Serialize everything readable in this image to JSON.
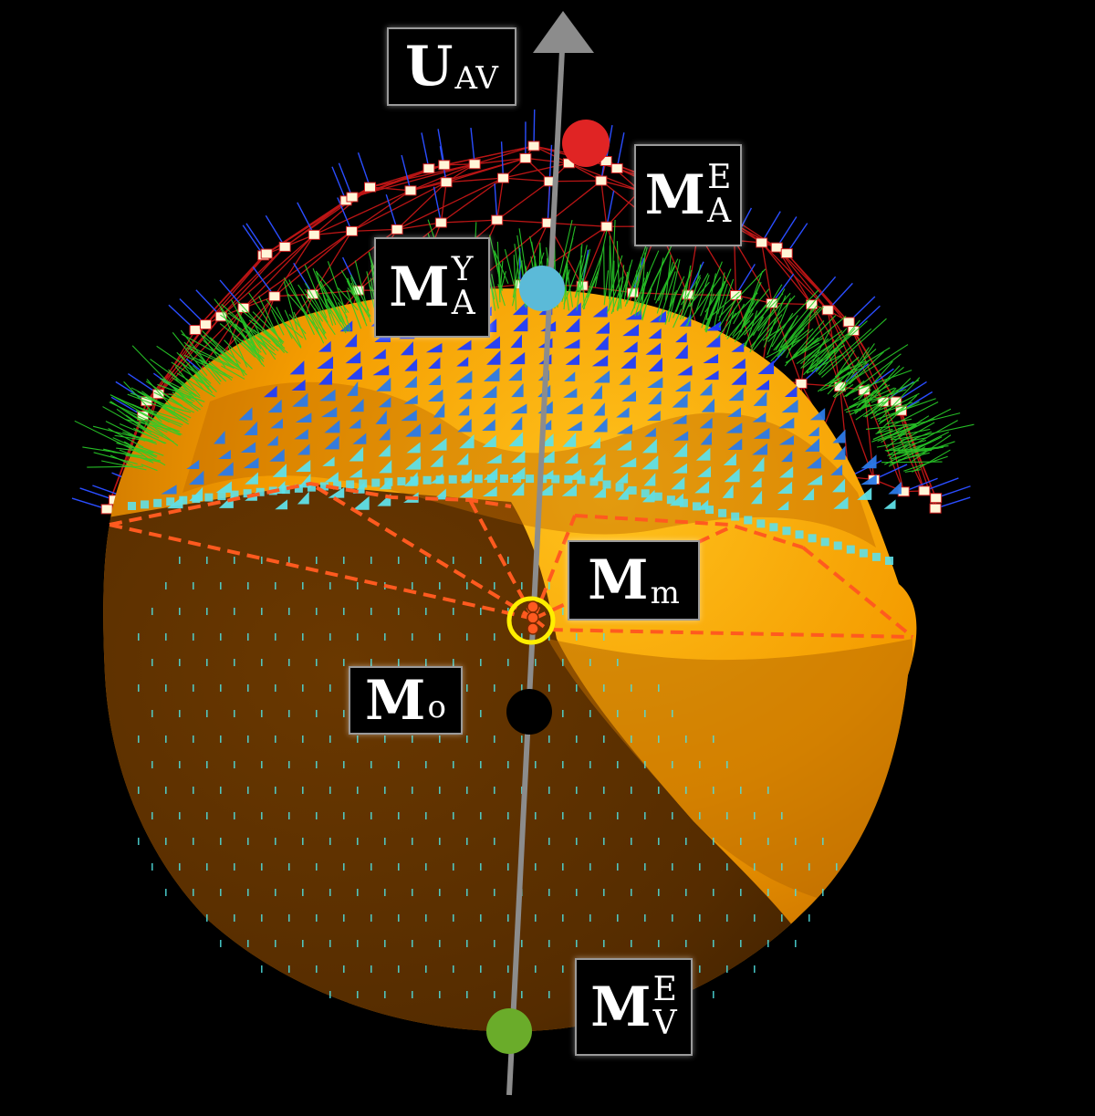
{
  "labels": {
    "uav": {
      "base": "U",
      "sub": "AV"
    },
    "mae": {
      "base": "M",
      "sup": "E",
      "sub": "A"
    },
    "may": {
      "base": "M",
      "sup": "Y",
      "sub": "A"
    },
    "mm": {
      "base": "M",
      "sub": "m"
    },
    "mo": {
      "base": "M",
      "sub": "o"
    },
    "mve": {
      "base": "M",
      "sup": "E",
      "sub": "V"
    }
  },
  "colors": {
    "background": "#000000",
    "axis": "#8c8c8c",
    "marker_mae": "#e02424",
    "marker_may": "#5bbad8",
    "marker_mo": "#000000",
    "marker_mve": "#6aac2a",
    "marker_mm_ring": "#ffee00",
    "marker_mm_fill": "#ff5a1f",
    "mesh_lines": "#d01818",
    "normals_green": "#2ad02a",
    "normals_blue": "#2a4dff",
    "surface_light": "#f6a400",
    "surface_dark": "#5a3000",
    "wedges_dark_blue": "#1e3cff",
    "wedges_cyan": "#5fe0e8",
    "dashed_lines": "#ff5a1f"
  }
}
